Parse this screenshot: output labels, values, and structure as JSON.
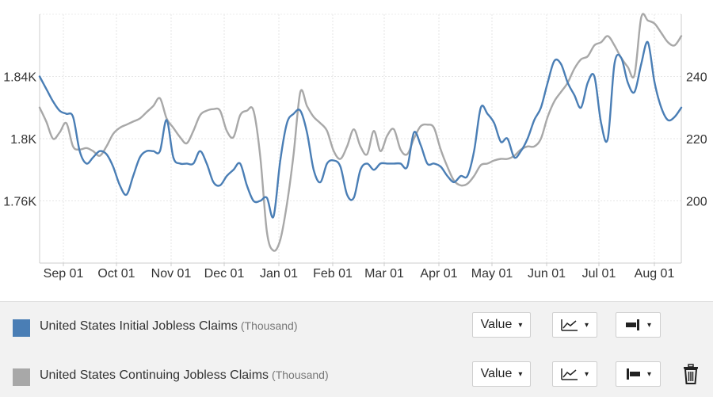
{
  "chart_data": {
    "type": "line",
    "x_labels": [
      "Sep 01",
      "Oct 01",
      "Nov 01",
      "Dec 01",
      "Jan 01",
      "Feb 01",
      "Mar 01",
      "Apr 01",
      "May 01",
      "Jun 01",
      "Jul 01",
      "Aug 01"
    ],
    "y_left": {
      "ticks": [
        "1.76K",
        "1.8K",
        "1.84K"
      ],
      "range": [
        1.72,
        1.88
      ],
      "unit": "K"
    },
    "y_right": {
      "ticks": [
        "200",
        "220",
        "240"
      ],
      "range": [
        180,
        260
      ]
    },
    "series": [
      {
        "name": "United States Initial Jobless Claims",
        "unit": "(Thousand)",
        "axis": "right",
        "color": "#4a7eb5",
        "values": [
          240,
          236,
          232,
          229,
          228,
          227,
          216,
          212,
          214,
          216,
          215,
          211,
          205,
          202,
          208,
          214,
          216,
          216,
          216,
          226,
          214,
          212,
          212,
          212,
          216,
          212,
          206,
          205,
          208,
          210,
          212,
          205,
          200,
          200,
          201,
          195,
          213,
          225,
          228,
          229,
          222,
          210,
          206,
          212,
          213,
          211,
          202,
          201,
          210,
          212,
          210,
          212,
          212,
          212,
          212,
          211,
          222,
          218,
          212,
          212,
          211,
          208,
          206,
          208,
          208,
          216,
          230,
          228,
          225,
          219,
          220,
          214,
          216,
          220,
          226,
          230,
          238,
          245,
          244,
          238,
          234,
          230,
          238,
          240,
          225,
          220,
          244,
          246,
          238,
          235,
          244,
          251,
          238,
          230,
          226,
          227,
          230
        ]
      },
      {
        "name": "United States Continuing Jobless Claims",
        "unit": "(Thousand)",
        "axis": "left",
        "color": "#a8a8a8",
        "values": [
          1.82,
          1.811,
          1.8,
          1.804,
          1.81,
          1.795,
          1.793,
          1.794,
          1.792,
          1.789,
          1.795,
          1.803,
          1.807,
          1.809,
          1.811,
          1.813,
          1.817,
          1.821,
          1.826,
          1.813,
          1.807,
          1.801,
          1.797,
          1.805,
          1.815,
          1.818,
          1.819,
          1.818,
          1.805,
          1.801,
          1.815,
          1.818,
          1.818,
          1.789,
          1.74,
          1.728,
          1.735,
          1.758,
          1.79,
          1.83,
          1.821,
          1.814,
          1.81,
          1.805,
          1.792,
          1.787,
          1.795,
          1.806,
          1.795,
          1.79,
          1.805,
          1.792,
          1.802,
          1.806,
          1.793,
          1.79,
          1.8,
          1.808,
          1.809,
          1.807,
          1.793,
          1.782,
          1.773,
          1.77,
          1.771,
          1.776,
          1.783,
          1.784,
          1.786,
          1.787,
          1.787,
          1.789,
          1.793,
          1.795,
          1.795,
          1.8,
          1.814,
          1.824,
          1.83,
          1.836,
          1.845,
          1.851,
          1.853,
          1.86,
          1.862,
          1.866,
          1.86,
          1.852,
          1.846,
          1.841,
          1.878,
          1.876,
          1.874,
          1.868,
          1.862,
          1.86,
          1.866
        ]
      }
    ],
    "grid": true,
    "legend_position": "bottom"
  },
  "legend": {
    "rows": [
      {
        "name": "United States Initial Jobless Claims",
        "unit": "(Thousand)",
        "color": "#4a7eb5",
        "value_label": "Value",
        "axis_icon": "axis-right-icon"
      },
      {
        "name": "United States Continuing Jobless Claims",
        "unit": "(Thousand)",
        "color": "#a8a8a8",
        "value_label": "Value",
        "axis_icon": "axis-left-icon"
      }
    ],
    "caret": "▾",
    "delete_icon": "trash-icon"
  }
}
